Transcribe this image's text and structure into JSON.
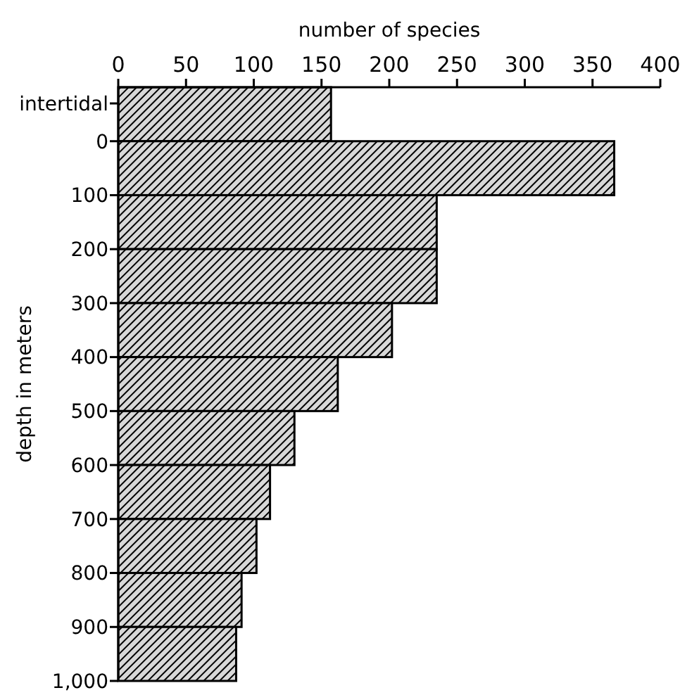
{
  "chart_data": {
    "type": "histogram",
    "orientation": "horizontal",
    "xlabel": "number of species",
    "ylabel": "depth in meters",
    "bins": [
      -100,
      0,
      100,
      200,
      300,
      400,
      500,
      600,
      700,
      800,
      900,
      1000
    ],
    "values": [
      157,
      366,
      235,
      235,
      202,
      162,
      130,
      112,
      102,
      91,
      87
    ],
    "color": "#000000",
    "xlim": [
      0,
      400
    ],
    "xticks": [
      0,
      50,
      100,
      150,
      200,
      250,
      300,
      350,
      400
    ],
    "ylim": [
      1000,
      -100
    ],
    "yticks": [
      {
        "value": -70,
        "label": "intertidal"
      },
      0,
      100,
      200,
      300,
      400,
      500,
      600,
      700,
      800,
      900,
      {
        "value": 1000,
        "label": "1,000"
      }
    ],
    "grid": false
  }
}
